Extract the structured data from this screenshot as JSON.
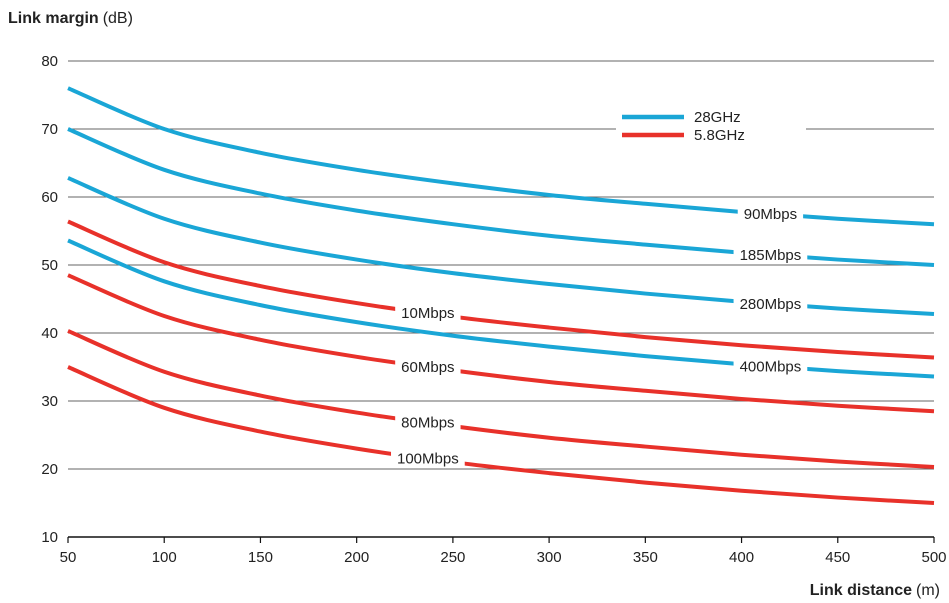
{
  "chart_data": {
    "type": "line",
    "ylabel_bold": "Link margin",
    "ylabel_unit": "(dB)",
    "xlabel_bold": "Link distance",
    "xlabel_unit": "(m)",
    "xlim": [
      50,
      500
    ],
    "ylim": [
      10,
      80
    ],
    "x_ticks": [
      50,
      100,
      150,
      200,
      250,
      300,
      350,
      400,
      450,
      500
    ],
    "y_ticks": [
      10,
      20,
      30,
      40,
      50,
      60,
      70,
      80
    ],
    "grid": "horizontal",
    "legend": {
      "placement": "top-right",
      "entries": [
        {
          "name": "28GHz",
          "color": "#1aa6d6"
        },
        {
          "name": "5.8GHz",
          "color": "#e8312a"
        }
      ]
    },
    "x": [
      50,
      100,
      150,
      200,
      250,
      300,
      350,
      400,
      450,
      500
    ],
    "series": [
      {
        "label": "90Mbps",
        "band": "28GHz",
        "color": "#1aa6d6",
        "label_x": 415,
        "values": [
          76.0,
          70.0,
          66.5,
          64.0,
          62.0,
          60.3,
          59.0,
          57.8,
          56.8,
          56.0
        ]
      },
      {
        "label": "185Mbps",
        "band": "28GHz",
        "color": "#1aa6d6",
        "label_x": 415,
        "values": [
          70.0,
          64.0,
          60.5,
          58.0,
          56.0,
          54.3,
          53.0,
          51.8,
          50.8,
          50.0
        ]
      },
      {
        "label": "280Mbps",
        "band": "28GHz",
        "color": "#1aa6d6",
        "label_x": 415,
        "values": [
          62.8,
          56.8,
          53.3,
          50.8,
          48.8,
          47.2,
          45.8,
          44.6,
          43.6,
          42.8
        ]
      },
      {
        "label": "400Mbps",
        "band": "28GHz",
        "color": "#1aa6d6",
        "label_x": 415,
        "values": [
          53.6,
          47.6,
          44.1,
          41.6,
          39.6,
          38.0,
          36.6,
          35.4,
          34.4,
          33.6
        ]
      },
      {
        "label": "10Mbps",
        "band": "5.8GHz",
        "color": "#e8312a",
        "label_x": 237,
        "values": [
          56.4,
          50.4,
          46.9,
          44.4,
          42.4,
          40.8,
          39.4,
          38.2,
          37.2,
          36.4
        ]
      },
      {
        "label": "60Mbps",
        "band": "5.8GHz",
        "color": "#e8312a",
        "label_x": 237,
        "values": [
          48.5,
          42.5,
          39.0,
          36.5,
          34.5,
          32.8,
          31.5,
          30.3,
          29.3,
          28.5
        ]
      },
      {
        "label": "80Mbps",
        "band": "5.8GHz",
        "color": "#e8312a",
        "label_x": 237,
        "values": [
          40.3,
          34.3,
          30.8,
          28.3,
          26.3,
          24.6,
          23.3,
          22.1,
          21.1,
          20.3
        ]
      },
      {
        "label": "100Mbps",
        "band": "5.8GHz",
        "color": "#e8312a",
        "label_x": 237,
        "values": [
          35.0,
          29.0,
          25.5,
          23.0,
          21.0,
          19.4,
          18.0,
          16.8,
          15.8,
          15.0
        ]
      }
    ]
  }
}
